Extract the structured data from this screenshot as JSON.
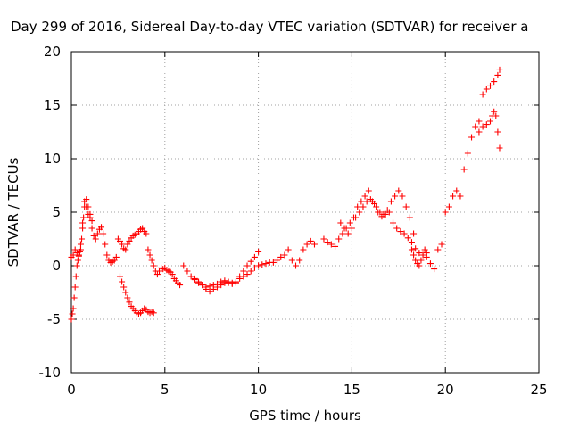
{
  "chart_data": {
    "type": "scatter",
    "title": "Day 299 of 2016, Sidereal Day-to-day VTEC variation (SDTVAR) for receiver a",
    "xlabel": "GPS time / hours",
    "ylabel": "SDTVAR / TECUs",
    "xlim": [
      0,
      25
    ],
    "ylim": [
      -10,
      20
    ],
    "xticks": [
      0,
      5,
      10,
      15,
      20,
      25
    ],
    "yticks": [
      -10,
      -5,
      0,
      5,
      10,
      15,
      20
    ],
    "grid": true,
    "marker": "plus",
    "color": "#ff0000",
    "series": [
      {
        "x": [
          0.0,
          0.1,
          0.2,
          0.3,
          0.4,
          0.5,
          0.6,
          0.7,
          0.8,
          0.9,
          1.0,
          1.1,
          1.2,
          1.3,
          1.4,
          1.5,
          1.6,
          1.7,
          1.8,
          1.9,
          2.0,
          2.1,
          2.2,
          2.3,
          2.4,
          2.5,
          2.6,
          2.7,
          2.8,
          2.9,
          3.0,
          3.1,
          3.2,
          3.3,
          3.4,
          3.5,
          3.6,
          3.7,
          3.8,
          3.9,
          4.0
        ],
        "y": [
          0.8,
          1.0,
          1.5,
          1.2,
          0.9,
          2.0,
          4.0,
          6.0,
          5.5,
          4.8,
          4.5,
          3.5,
          2.8,
          2.5,
          3.0,
          3.4,
          3.6,
          3.0,
          2.0,
          1.0,
          0.5,
          0.3,
          0.4,
          0.5,
          0.8,
          2.5,
          2.3,
          2.0,
          1.6,
          1.5,
          2.0,
          2.3,
          2.6,
          2.8,
          2.9,
          3.0,
          3.2,
          3.4,
          3.5,
          3.2,
          3.0
        ]
      },
      {
        "x": [
          0.0,
          0.05,
          0.1,
          0.15,
          0.2,
          0.25,
          0.3,
          0.35,
          0.4,
          0.45,
          0.5,
          0.55,
          0.6,
          0.65,
          0.7,
          0.8,
          0.9,
          1.0,
          1.1
        ],
        "y": [
          -5.0,
          -4.5,
          -4.0,
          -3.0,
          -2.0,
          -1.0,
          0.0,
          0.5,
          1.0,
          1.3,
          1.5,
          2.5,
          3.5,
          4.5,
          5.5,
          6.2,
          5.5,
          4.8,
          4.2
        ]
      },
      {
        "x": [
          2.6,
          2.7,
          2.8,
          2.9,
          3.0,
          3.1,
          3.2,
          3.3,
          3.4,
          3.5,
          3.6,
          3.7,
          3.8,
          3.9,
          4.0,
          4.1,
          4.2,
          4.3,
          4.4
        ],
        "y": [
          -1.0,
          -1.5,
          -2.0,
          -2.5,
          -3.0,
          -3.4,
          -3.8,
          -4.0,
          -4.2,
          -4.4,
          -4.5,
          -4.4,
          -4.2,
          -4.0,
          -4.1,
          -4.3,
          -4.4,
          -4.3,
          -4.4
        ]
      },
      {
        "x": [
          4.1,
          4.2,
          4.3,
          4.4,
          4.5,
          4.6,
          4.7,
          4.8,
          4.9,
          5.0,
          5.1,
          5.2,
          5.3,
          5.4,
          5.5,
          5.6,
          5.7,
          5.8
        ],
        "y": [
          1.5,
          1.0,
          0.5,
          0.0,
          -0.5,
          -0.8,
          -0.5,
          -0.2,
          -0.3,
          -0.2,
          -0.4,
          -0.5,
          -0.6,
          -0.8,
          -1.2,
          -1.4,
          -1.6,
          -1.8
        ]
      },
      {
        "x": [
          6.0,
          6.2,
          6.4,
          6.6,
          6.8,
          7.0,
          7.2,
          7.4,
          7.6,
          7.8,
          8.0,
          8.2,
          8.4,
          8.6,
          8.8,
          9.0,
          9.2,
          9.4,
          9.6,
          9.8,
          10.0,
          10.2,
          10.4,
          10.6,
          10.8,
          11.0,
          11.2,
          11.4,
          11.6,
          11.8,
          12.0,
          12.2,
          12.4,
          12.6,
          12.8,
          13.0
        ],
        "y": [
          0.0,
          -0.5,
          -1.0,
          -1.3,
          -1.6,
          -1.8,
          -2.0,
          -1.9,
          -1.8,
          -1.7,
          -1.5,
          -1.4,
          -1.5,
          -1.6,
          -1.5,
          -1.2,
          -1.0,
          -0.8,
          -0.5,
          -0.2,
          0.0,
          0.1,
          0.2,
          0.3,
          0.3,
          0.5,
          0.8,
          1.0,
          1.5,
          0.5,
          0.0,
          0.5,
          1.5,
          2.0,
          2.3,
          2.0
        ]
      },
      {
        "x": [
          6.6,
          6.8,
          7.0,
          7.2,
          7.4,
          7.6,
          7.8,
          8.0,
          8.2,
          8.4,
          8.6,
          8.8,
          9.0,
          9.2,
          9.4,
          9.6,
          9.8,
          10.0
        ],
        "y": [
          -1.2,
          -1.5,
          -1.8,
          -2.2,
          -2.4,
          -2.2,
          -2.0,
          -1.8,
          -1.6,
          -1.6,
          -1.7,
          -1.6,
          -1.0,
          -0.5,
          0.0,
          0.4,
          0.8,
          1.3
        ]
      },
      {
        "x": [
          13.5,
          13.7,
          13.9,
          14.1,
          14.3,
          14.5,
          14.7,
          14.9,
          15.1,
          15.3,
          15.5,
          15.7,
          15.9,
          16.1,
          16.3,
          16.5,
          16.7,
          16.9,
          17.1,
          17.3,
          17.5,
          17.7,
          17.9,
          18.1,
          18.3
        ],
        "y": [
          2.5,
          2.2,
          2.0,
          1.8,
          2.5,
          3.0,
          3.5,
          4.0,
          4.5,
          5.5,
          6.0,
          6.5,
          7.0,
          6.0,
          5.5,
          5.0,
          4.8,
          5.2,
          6.0,
          6.5,
          7.0,
          6.5,
          5.5,
          4.5,
          3.0
        ]
      },
      {
        "x": [
          14.4,
          14.6,
          14.8,
          15.0,
          15.2,
          15.4,
          15.6,
          15.8,
          16.0,
          16.2,
          16.4,
          16.6,
          16.8,
          17.0,
          17.2,
          17.4,
          17.6,
          17.8,
          18.0,
          18.2,
          18.4,
          18.6,
          18.8,
          19.0
        ],
        "y": [
          4.0,
          3.5,
          3.0,
          3.5,
          4.5,
          5.0,
          5.5,
          6.0,
          6.2,
          5.8,
          5.0,
          4.6,
          4.8,
          5.0,
          4.0,
          3.5,
          3.2,
          3.0,
          2.6,
          2.2,
          1.6,
          1.2,
          1.0,
          0.8
        ]
      },
      {
        "x": [
          18.2,
          18.3,
          18.4,
          18.5,
          18.6,
          18.7,
          18.8,
          18.9,
          19.0,
          19.2,
          19.4,
          19.6,
          19.8,
          20.0,
          20.2,
          20.4,
          20.6,
          20.8,
          21.0,
          21.2,
          21.4,
          21.6,
          21.8,
          22.0,
          22.2,
          22.4,
          22.6,
          22.8,
          22.9
        ],
        "y": [
          1.5,
          1.0,
          0.5,
          0.2,
          0.0,
          0.5,
          1.0,
          1.5,
          1.2,
          0.2,
          -0.3,
          1.5,
          2.0,
          5.0,
          5.5,
          6.5,
          7.0,
          6.5,
          9.0,
          10.5,
          12.0,
          13.0,
          13.5,
          16.0,
          16.5,
          16.8,
          17.2,
          17.8,
          18.3
        ]
      },
      {
        "x": [
          21.8,
          22.0,
          22.2,
          22.4,
          22.5,
          22.6,
          22.7,
          22.8,
          22.9
        ],
        "y": [
          12.5,
          13.0,
          13.2,
          13.5,
          14.0,
          14.4,
          14.0,
          12.5,
          11.0
        ]
      }
    ]
  }
}
